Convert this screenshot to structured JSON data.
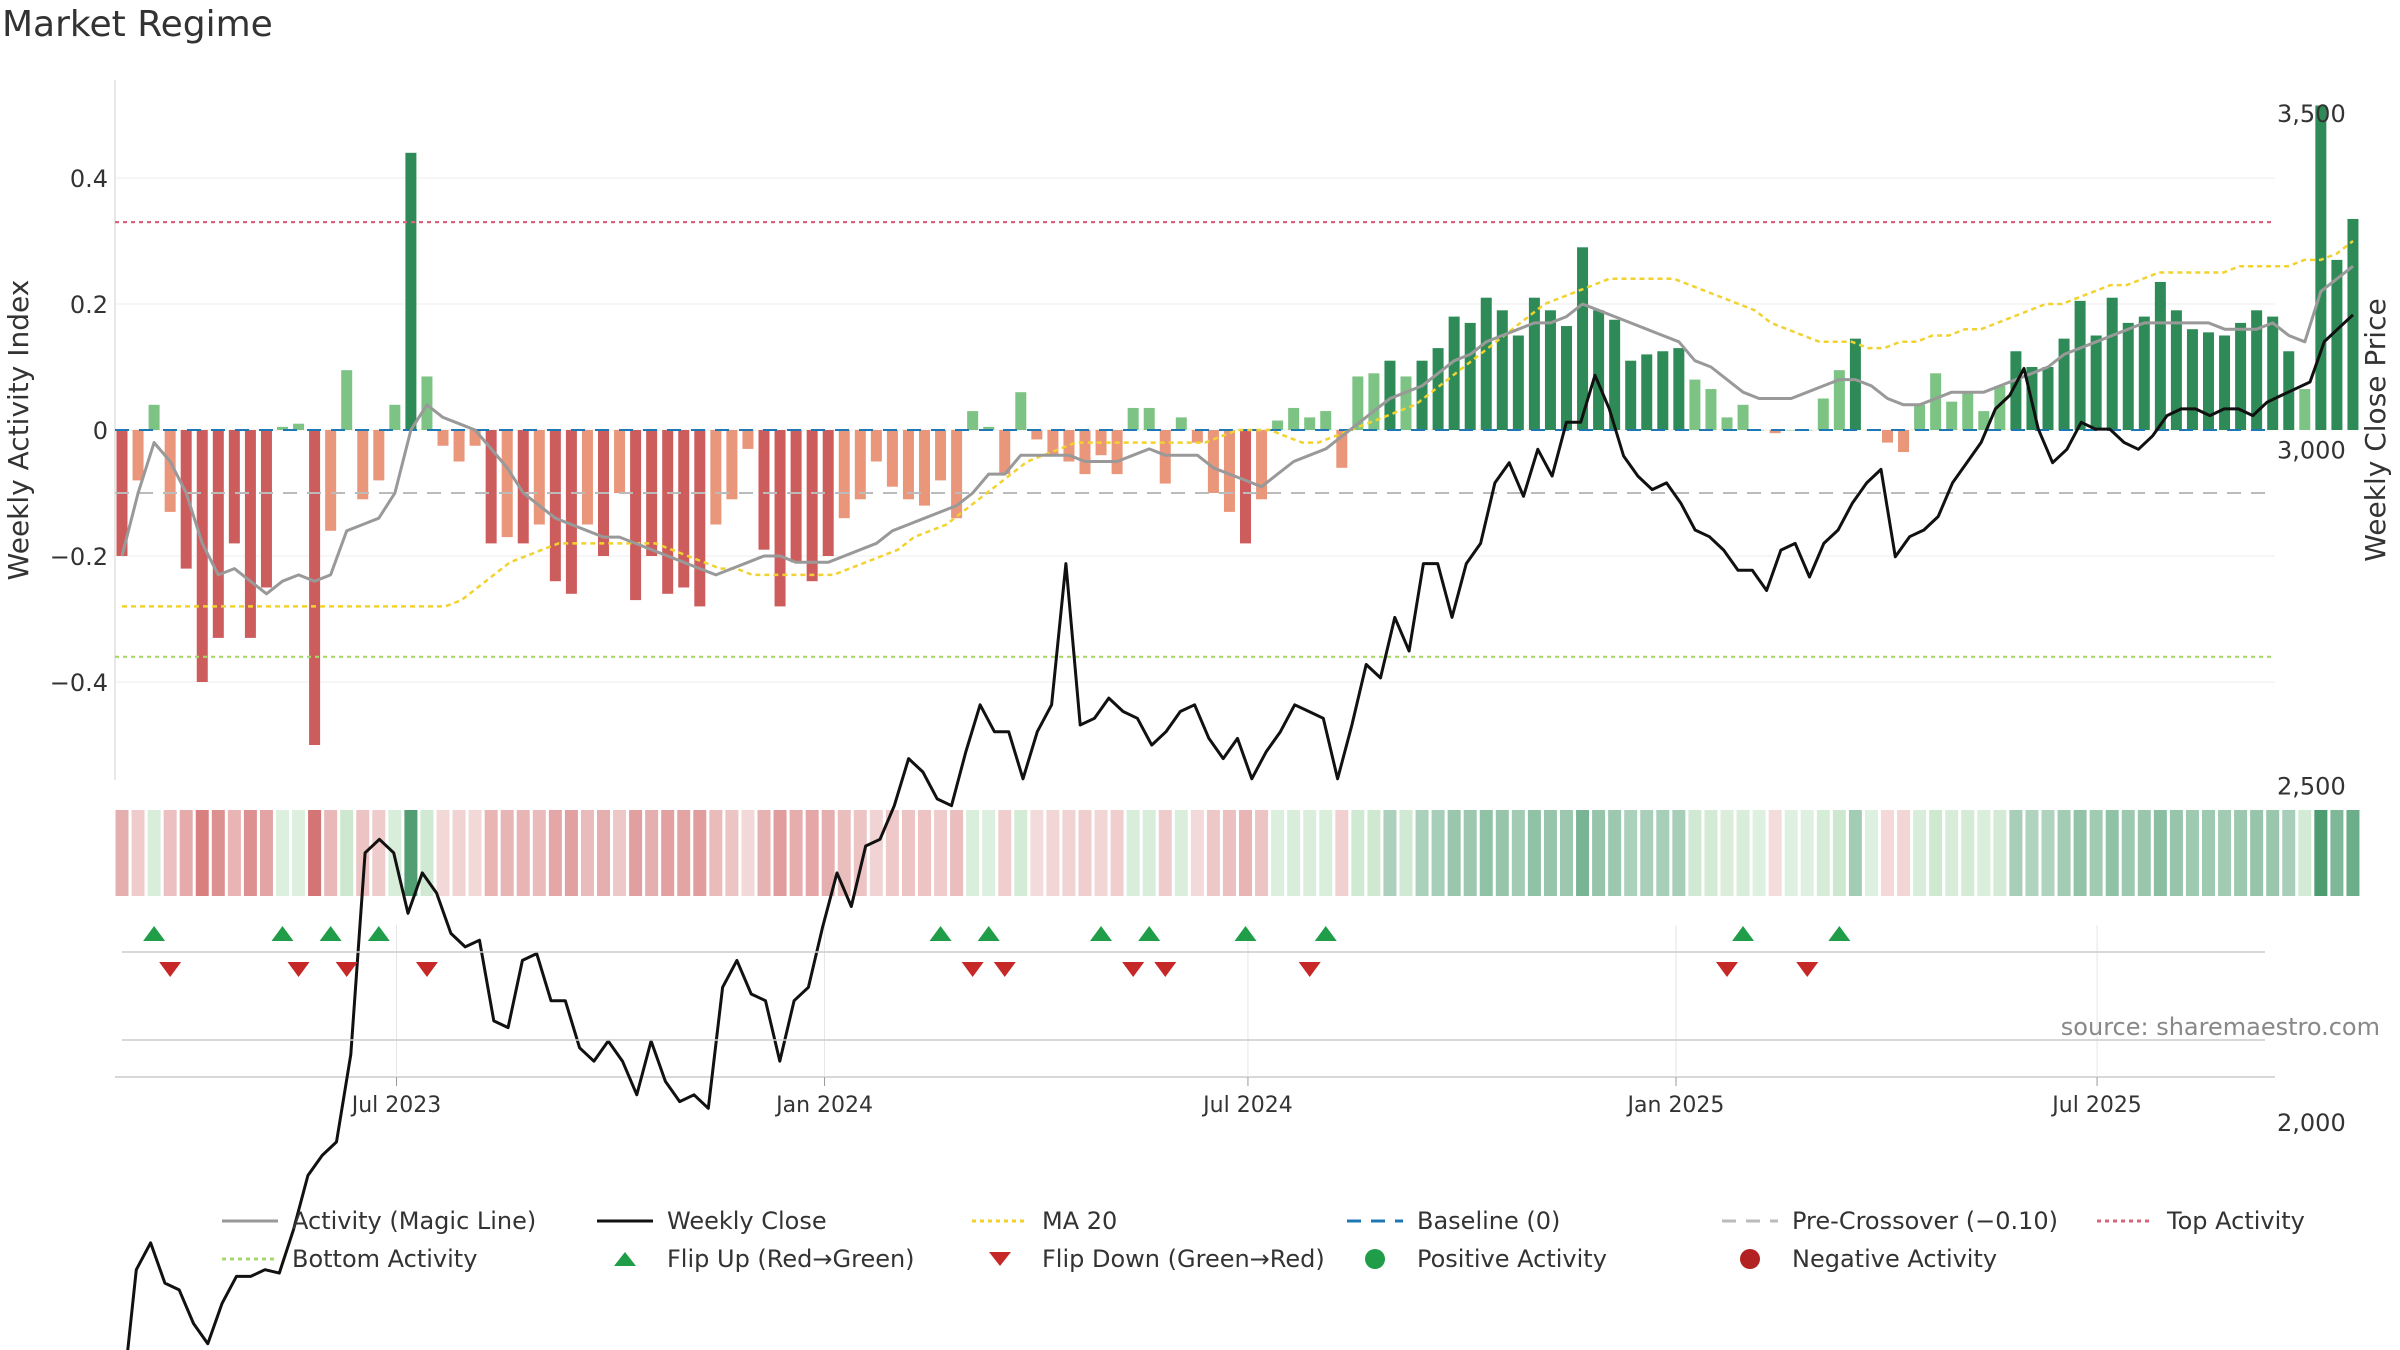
{
  "title": "Market Regime",
  "source_note": "source: sharemaestro.com",
  "colors": {
    "strong_green": "#2e8b57",
    "light_green": "#7dc383",
    "strong_red": "#cd5c5c",
    "light_red": "#e9967a",
    "magic_line": "#999999",
    "weekly_close": "#111111",
    "ma20": "#f2d22e",
    "baseline": "#1f77b4",
    "pre_crossover": "#bbbbbb",
    "top_activity": "#d9667a",
    "bottom_activity": "#a6d96a",
    "flip_up": "#1f9d48",
    "flip_down": "#c62828"
  },
  "legend": [
    {
      "label": "Activity (Magic Line)",
      "kind": "line",
      "color": "#999999",
      "dash": ""
    },
    {
      "label": "Weekly Close",
      "kind": "line",
      "color": "#111111",
      "dash": ""
    },
    {
      "label": "MA 20",
      "kind": "line",
      "color": "#f2d22e",
      "dash": "4,4"
    },
    {
      "label": "Baseline (0)",
      "kind": "line",
      "color": "#1f77b4",
      "dash": "14,10"
    },
    {
      "label": "Pre-Crossover (−0.10)",
      "kind": "line",
      "color": "#bbbbbb",
      "dash": "14,10"
    },
    {
      "label": "Top Activity",
      "kind": "line",
      "color": "#d9667a",
      "dash": "4,4"
    },
    {
      "label": "Bottom Activity",
      "kind": "line",
      "color": "#a6d96a",
      "dash": "4,4"
    },
    {
      "label": "Flip Up (Red→Green)",
      "kind": "tri-up",
      "color": "#1f9d48",
      "dash": ""
    },
    {
      "label": "Flip Down (Green→Red)",
      "kind": "tri-down",
      "color": "#c62828",
      "dash": ""
    },
    {
      "label": "Positive Activity",
      "kind": "dot",
      "color": "#1f9d48",
      "dash": ""
    },
    {
      "label": "Negative Activity",
      "kind": "dot",
      "color": "#b22222",
      "dash": ""
    }
  ],
  "chart_data": {
    "type": "bar",
    "left_axis": {
      "label": "Weekly Activity Index",
      "range": [
        -0.55,
        0.55
      ],
      "ticks": [
        -0.4,
        -0.2,
        0,
        0.2,
        0.4
      ],
      "tick_labels": [
        "−0.4",
        "−0.2",
        "0",
        "0.2",
        "0.4"
      ]
    },
    "right_axis": {
      "label": "Weekly Close Price",
      "range": [
        1600,
        3560
      ],
      "ticks": [
        2000,
        2500,
        3000,
        3500
      ],
      "tick_labels": [
        "2,000",
        "2,500",
        "3,000",
        "3,500"
      ]
    },
    "x_axis": {
      "start": "2023-03-05",
      "end": "2025-10-19",
      "ticks": [
        "2023-07-01",
        "2024-01-01",
        "2024-07-01",
        "2025-01-01",
        "2025-07-01"
      ],
      "tick_labels": [
        "Jul 2023",
        "Jan 2024",
        "Jul 2024",
        "Jan 2025",
        "Jul 2025"
      ]
    },
    "reference_lines": {
      "top_activity": 0.33,
      "bottom_activity": -0.36,
      "pre_crossover": -0.1,
      "baseline": 0
    },
    "activity_bars": [
      -0.2,
      -0.08,
      0.04,
      -0.13,
      -0.22,
      -0.4,
      -0.33,
      -0.18,
      -0.33,
      -0.25,
      0.005,
      0.01,
      -0.5,
      -0.16,
      0.095,
      -0.11,
      -0.08,
      0.04,
      0.44,
      0.085,
      -0.025,
      -0.05,
      -0.025,
      -0.18,
      -0.17,
      -0.18,
      -0.15,
      -0.24,
      -0.26,
      -0.15,
      -0.2,
      -0.1,
      -0.27,
      -0.2,
      -0.26,
      -0.25,
      -0.28,
      -0.15,
      -0.11,
      -0.03,
      -0.19,
      -0.28,
      -0.21,
      -0.24,
      -0.2,
      -0.14,
      -0.11,
      -0.05,
      -0.09,
      -0.11,
      -0.12,
      -0.08,
      -0.14,
      0.03,
      0.005,
      -0.07,
      0.06,
      -0.015,
      -0.04,
      -0.05,
      -0.07,
      -0.04,
      -0.07,
      0.035,
      0.035,
      -0.085,
      0.02,
      -0.02,
      -0.1,
      -0.13,
      -0.18,
      -0.11,
      0.015,
      0.035,
      0.02,
      0.03,
      -0.06,
      0.085,
      0.09,
      0.11,
      0.085,
      0.11,
      0.13,
      0.18,
      0.17,
      0.21,
      0.19,
      0.15,
      0.21,
      0.19,
      0.165,
      0.29,
      0.19,
      0.175,
      0.11,
      0.12,
      0.125,
      0.13,
      0.08,
      0.065,
      0.02,
      0.04,
      0.0,
      -0.005,
      0.0,
      0.0,
      0.05,
      0.095,
      0.145,
      0.0,
      -0.02,
      -0.035,
      0.04,
      0.09,
      0.045,
      0.06,
      0.03,
      0.07,
      0.125,
      0.1,
      0.1,
      0.145,
      0.205,
      0.15,
      0.21,
      0.17,
      0.18,
      0.235,
      0.19,
      0.16,
      0.155,
      0.15,
      0.17,
      0.19,
      0.18,
      0.125,
      0.065,
      0.515,
      0.27,
      0.335
    ],
    "activity_magic_line": [
      -0.2,
      -0.1,
      -0.02,
      -0.05,
      -0.1,
      -0.18,
      -0.23,
      -0.22,
      -0.24,
      -0.26,
      -0.24,
      -0.23,
      -0.24,
      -0.23,
      -0.16,
      -0.15,
      -0.14,
      -0.1,
      0.0,
      0.04,
      0.02,
      0.01,
      0.0,
      -0.03,
      -0.06,
      -0.1,
      -0.12,
      -0.14,
      -0.15,
      -0.16,
      -0.17,
      -0.17,
      -0.18,
      -0.19,
      -0.2,
      -0.21,
      -0.22,
      -0.23,
      -0.22,
      -0.21,
      -0.2,
      -0.2,
      -0.21,
      -0.21,
      -0.21,
      -0.2,
      -0.19,
      -0.18,
      -0.16,
      -0.15,
      -0.14,
      -0.13,
      -0.12,
      -0.1,
      -0.07,
      -0.07,
      -0.04,
      -0.04,
      -0.04,
      -0.04,
      -0.05,
      -0.05,
      -0.05,
      -0.04,
      -0.03,
      -0.04,
      -0.04,
      -0.04,
      -0.06,
      -0.07,
      -0.08,
      -0.09,
      -0.07,
      -0.05,
      -0.04,
      -0.03,
      -0.01,
      0.01,
      0.03,
      0.05,
      0.06,
      0.07,
      0.09,
      0.11,
      0.12,
      0.14,
      0.15,
      0.16,
      0.17,
      0.17,
      0.18,
      0.2,
      0.19,
      0.18,
      0.17,
      0.16,
      0.15,
      0.14,
      0.11,
      0.1,
      0.08,
      0.06,
      0.05,
      0.05,
      0.05,
      0.06,
      0.07,
      0.08,
      0.08,
      0.07,
      0.05,
      0.04,
      0.04,
      0.05,
      0.06,
      0.06,
      0.06,
      0.07,
      0.08,
      0.09,
      0.1,
      0.12,
      0.13,
      0.14,
      0.15,
      0.16,
      0.17,
      0.17,
      0.17,
      0.17,
      0.17,
      0.16,
      0.16,
      0.16,
      0.17,
      0.15,
      0.14,
      0.22,
      0.24,
      0.26
    ],
    "weekly_close": [
      1580,
      1780,
      1820,
      1760,
      1750,
      1700,
      1670,
      1730,
      1770,
      1770,
      1780,
      1775,
      1840,
      1920,
      1950,
      1970,
      2100,
      2400,
      2420,
      2400,
      2310,
      2370,
      2340,
      2280,
      2260,
      2270,
      2150,
      2140,
      2240,
      2250,
      2180,
      2180,
      2110,
      2090,
      2120,
      2090,
      2040,
      2120,
      2060,
      2030,
      2040,
      2020,
      2200,
      2240,
      2190,
      2180,
      2090,
      2180,
      2200,
      2290,
      2370,
      2320,
      2410,
      2420,
      2470,
      2540,
      2520,
      2480,
      2470,
      2550,
      2620,
      2580,
      2580,
      2510,
      2580,
      2620,
      2830,
      2590,
      2600,
      2630,
      2610,
      2600,
      2560,
      2580,
      2610,
      2620,
      2570,
      2540,
      2570,
      2510,
      2550,
      2580,
      2620,
      2610,
      2600,
      2510,
      2590,
      2680,
      2660,
      2750,
      2700,
      2830,
      2830,
      2750,
      2830,
      2860,
      2950,
      2980,
      2930,
      3000,
      2960,
      3040,
      3040,
      3110,
      3060,
      2990,
      2960,
      2940,
      2950,
      2920,
      2880,
      2870,
      2850,
      2820,
      2820,
      2790,
      2850,
      2860,
      2810,
      2860,
      2880,
      2920,
      2950,
      2970,
      2840,
      2870,
      2880,
      2900,
      2950,
      2980,
      3010,
      3060,
      3080,
      3120,
      3030,
      2980,
      3000,
      3040,
      3030,
      3030,
      3010,
      3000,
      3020,
      3050,
      3060,
      3060,
      3050,
      3060,
      3060,
      3050,
      3070,
      3080,
      3090,
      3100,
      3160,
      3180,
      3200
    ],
    "ma20": [
      -0.28,
      -0.28,
      -0.28,
      -0.28,
      -0.28,
      -0.28,
      -0.28,
      -0.28,
      -0.28,
      -0.28,
      -0.28,
      -0.28,
      -0.28,
      -0.28,
      -0.28,
      -0.28,
      -0.28,
      -0.28,
      -0.28,
      -0.28,
      -0.28,
      -0.27,
      -0.25,
      -0.23,
      -0.21,
      -0.2,
      -0.19,
      -0.18,
      -0.18,
      -0.18,
      -0.18,
      -0.18,
      -0.18,
      -0.18,
      -0.19,
      -0.2,
      -0.21,
      -0.22,
      -0.22,
      -0.23,
      -0.23,
      -0.23,
      -0.23,
      -0.23,
      -0.23,
      -0.22,
      -0.21,
      -0.2,
      -0.19,
      -0.17,
      -0.16,
      -0.15,
      -0.13,
      -0.11,
      -0.09,
      -0.07,
      -0.05,
      -0.04,
      -0.03,
      -0.02,
      -0.02,
      -0.02,
      -0.02,
      -0.02,
      -0.02,
      -0.02,
      -0.02,
      -0.02,
      -0.01,
      -0.0,
      0.0,
      0.0,
      -0.01,
      -0.02,
      -0.02,
      -0.01,
      0.0,
      0.01,
      0.02,
      0.03,
      0.04,
      0.06,
      0.08,
      0.1,
      0.12,
      0.14,
      0.16,
      0.18,
      0.2,
      0.21,
      0.22,
      0.23,
      0.24,
      0.24,
      0.24,
      0.24,
      0.24,
      0.23,
      0.22,
      0.21,
      0.2,
      0.19,
      0.17,
      0.16,
      0.15,
      0.14,
      0.14,
      0.14,
      0.13,
      0.13,
      0.14,
      0.14,
      0.15,
      0.15,
      0.16,
      0.16,
      0.17,
      0.18,
      0.19,
      0.2,
      0.2,
      0.21,
      0.22,
      0.23,
      0.23,
      0.24,
      0.25,
      0.25,
      0.25,
      0.25,
      0.25,
      0.26,
      0.26,
      0.26,
      0.26,
      0.27,
      0.27,
      0.28,
      0.3
    ],
    "flip_up_weeks": [
      2,
      10,
      13,
      16,
      51,
      54,
      61,
      64,
      70,
      75,
      101,
      107
    ],
    "flip_down_weeks": [
      3,
      11,
      14,
      19,
      53,
      55,
      63,
      65,
      74,
      100,
      105
    ]
  }
}
